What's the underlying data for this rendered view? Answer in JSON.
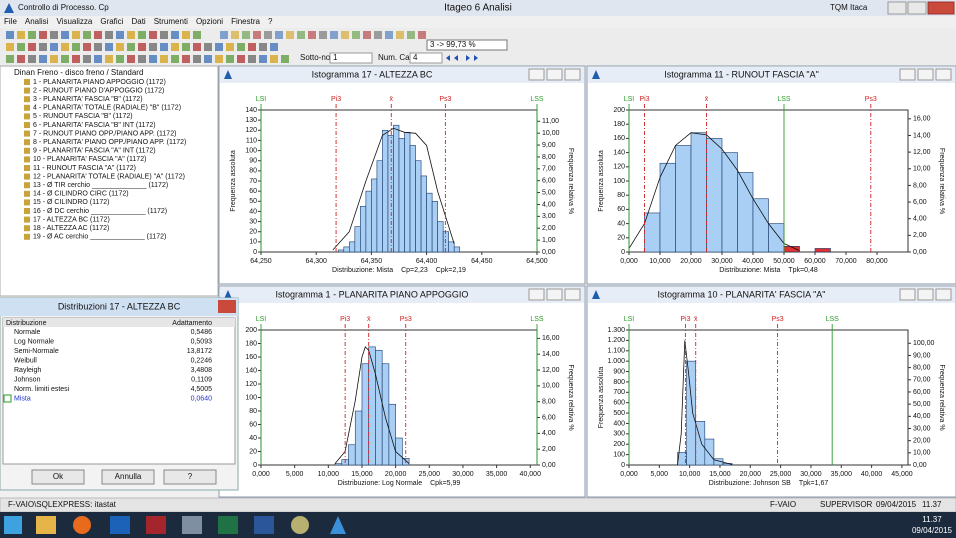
{
  "app": {
    "title": "Controllo di Processo. Cp",
    "center_title": "Itageo 6 Analisi",
    "right_title": "TQM Itaca"
  },
  "menu": [
    "File",
    "Analisi",
    "Visualizza",
    "Grafici",
    "Dati",
    "Strumenti",
    "Opzioni",
    "Finestra",
    "?"
  ],
  "toolbar": {
    "subgroup_label": "Sotto-no",
    "subgroup_value": "1",
    "categories_label": "Num. Cat.:",
    "categories_value": "4",
    "coverage": "3 -> 99,73 %"
  },
  "tree": {
    "root": "Dinan Freno - disco freno / Standard",
    "items": [
      "1 - PLANARITA PIANO APPOGGIO (1172)",
      "2 - RUNOUT PIANO D'APPOGGIO (1172)",
      "3 - PLANARITA' FASCIA \"B\" (1172)",
      "4 - PLANARITA' TOTALE (RADIALE) \"B\" (1172)",
      "5 - RUNOUT FASCIA \"B\" (1172)",
      "6 - PLANARITA' FASCIA \"B\" INT (1172)",
      "7 - RUNOUT PIANO OPP./PIANO APP. (1172)",
      "8 - PLANARITA' PIANO OPP./PIANO APP. (1172)",
      "9 - PLANARITA' FASCIA \"A\" INT (1172)",
      "10 - PLANARITA' FASCIA \"A\" (1172)",
      "11 - RUNOUT FASCIA \"A\" (1172)",
      "12 - PLANARITA' TOTALE (RADIALE) \"A\" (1172)",
      "13 - Ø TIR cerchio ______________ (1172)",
      "14 - Ø CILINDRO CIRC (1172)",
      "15 - Ø CILINDRO (1172)",
      "16 - Ø DC cerchio ______________ (1172)",
      "17 - ALTEZZA BC (1172)",
      "18 - ALTEZZA AC (1172)",
      "19 - Ø AC cerchio ______________ (1172)"
    ]
  },
  "dialog": {
    "title": "Distribuzioni 17 - ALTEZZA BC",
    "headers": [
      "Distribuzione",
      "Adattamento"
    ],
    "rows": [
      [
        "Normale",
        "0,5486"
      ],
      [
        "Log Normale",
        "0,5093"
      ],
      [
        "Semi-Normale",
        "13,8172"
      ],
      [
        "Weibull",
        "0,2246"
      ],
      [
        "Rayleigh",
        "3,4808"
      ],
      [
        "Johnson",
        "0,1109"
      ],
      [
        "Norm. limiti estesi",
        "4,5005"
      ],
      [
        "Mista",
        "0,0640"
      ]
    ],
    "buttons": [
      "Ok",
      "Annulla",
      "?"
    ]
  },
  "status": [
    "F-VAIO\\SQLEXPRESS: itastat",
    "F-VAIO",
    "SUPERVISOR",
    "09/04/2015",
    "11.37"
  ],
  "taskbar": {
    "time": "11.37",
    "date": "09/04/2015"
  },
  "chart_data": [
    {
      "type": "histogram",
      "title": "Istogramma 17 - ALTEZZA BC",
      "color": "#a9cff5",
      "bins": [
        64.32,
        64.325,
        64.33,
        64.335,
        64.34,
        64.345,
        64.35,
        64.355,
        64.36,
        64.365,
        64.37,
        64.375,
        64.38,
        64.385,
        64.39,
        64.395,
        64.4,
        64.405,
        64.41,
        64.415,
        64.42,
        64.425,
        64.43
      ],
      "values": [
        2,
        5,
        10,
        25,
        45,
        60,
        72,
        90,
        120,
        115,
        125,
        112,
        118,
        105,
        90,
        75,
        58,
        50,
        30,
        20,
        10,
        5
      ],
      "fit": {
        "x": [
          64.315,
          64.33,
          64.345,
          64.36,
          64.37,
          64.38,
          64.39,
          64.4,
          64.41,
          64.425
        ],
        "values": [
          2,
          20,
          70,
          115,
          122,
          118,
          117,
          105,
          60,
          8
        ]
      },
      "xlim": [
        64.25,
        64.5
      ],
      "xticks": [
        {
          "value": 64.25,
          "label": "64,250"
        },
        {
          "value": 64.3,
          "label": "64,300"
        },
        {
          "value": 64.35,
          "label": "64,350"
        },
        {
          "value": 64.4,
          "label": "64,400"
        },
        {
          "value": 64.45,
          "label": "64,450"
        },
        {
          "value": 64.5,
          "label": "64,500"
        }
      ],
      "ylim": [
        0,
        140
      ],
      "yticks": [
        0,
        10,
        20,
        30,
        40,
        50,
        60,
        70,
        80,
        90,
        100,
        110,
        120,
        130,
        140
      ],
      "y2lim": [
        0,
        11.95
      ],
      "y2ticks": [
        {
          "value": 0,
          "label": "0,00"
        },
        {
          "value": 1,
          "label": "1,00"
        },
        {
          "value": 2,
          "label": "2,00"
        },
        {
          "value": 3,
          "label": "3,00"
        },
        {
          "value": 4,
          "label": "4,00"
        },
        {
          "value": 5,
          "label": "5,00"
        },
        {
          "value": 6,
          "label": "6,00"
        },
        {
          "value": 7,
          "label": "7,00"
        },
        {
          "value": 8,
          "label": "8,00"
        },
        {
          "value": 9,
          "label": "9,00"
        },
        {
          "value": 10,
          "label": "10,00"
        },
        {
          "value": 11,
          "label": "11,00"
        }
      ],
      "ylabel": "Frequenza assoluta",
      "y2label": "Frequenza relativa %",
      "limits": [
        {
          "name": "LSI",
          "value": 64.25,
          "color": "#2a9d2a",
          "dash": false
        },
        {
          "name": "Pi3",
          "value": 64.318,
          "color": "#d02020",
          "dash": true
        },
        {
          "name": "x̄",
          "value": 64.368,
          "color": "#d02020",
          "dash": true
        },
        {
          "name": "Ps3",
          "value": 64.417,
          "color": "#d02020",
          "dash": true
        },
        {
          "name": "LSS",
          "value": 64.5,
          "color": "#2a9d2a",
          "dash": false
        }
      ],
      "footer": [
        "Distribuzione: Mista",
        "Cp=2,23",
        "Cpk=2,19"
      ]
    },
    {
      "type": "histogram",
      "title": "Istogramma 11 - RUNOUT FASCIA \"A\"",
      "color": "#a9cff5",
      "bins": [
        5,
        10,
        15,
        20,
        25,
        30,
        35,
        40,
        45,
        50,
        55,
        60,
        65
      ],
      "values": [
        55,
        125,
        150,
        168,
        160,
        140,
        112,
        75,
        40,
        8,
        0,
        5
      ],
      "bar_colors": [
        "#a9cff5",
        "#a9cff5",
        "#a9cff5",
        "#a9cff5",
        "#a9cff5",
        "#a9cff5",
        "#a9cff5",
        "#a9cff5",
        "#a9cff5",
        "#e03030",
        "#e03030",
        "#e03030"
      ],
      "fit": {
        "x": [
          0,
          5,
          10,
          15,
          20,
          25,
          30,
          35,
          40,
          45,
          50,
          55
        ],
        "values": [
          5,
          40,
          105,
          150,
          168,
          165,
          145,
          115,
          75,
          40,
          12,
          2
        ]
      },
      "xlim": [
        0,
        90
      ],
      "xticks": [
        {
          "value": 0,
          "label": "0,000"
        },
        {
          "value": 10,
          "label": "10,000"
        },
        {
          "value": 20,
          "label": "20,000"
        },
        {
          "value": 30,
          "label": "30,000"
        },
        {
          "value": 40,
          "label": "40,000"
        },
        {
          "value": 50,
          "label": "50,000"
        },
        {
          "value": 60,
          "label": "60,000"
        },
        {
          "value": 70,
          "label": "70,000"
        },
        {
          "value": 80,
          "label": "80,000"
        }
      ],
      "ylim": [
        0,
        200
      ],
      "yticks": [
        0,
        20,
        40,
        60,
        80,
        100,
        120,
        140,
        160,
        180,
        200
      ],
      "y2lim": [
        0,
        17.06
      ],
      "y2ticks": [
        {
          "value": 0,
          "label": "0,00"
        },
        {
          "value": 2,
          "label": "2,00"
        },
        {
          "value": 4,
          "label": "4,00"
        },
        {
          "value": 6,
          "label": "6,00"
        },
        {
          "value": 8,
          "label": "8,00"
        },
        {
          "value": 10,
          "label": "10,00"
        },
        {
          "value": 12,
          "label": "12,00"
        },
        {
          "value": 14,
          "label": "14,00"
        },
        {
          "value": 16,
          "label": "16,00"
        }
      ],
      "ylabel": "Frequenza assoluta",
      "y2label": "Frequenza relativa %",
      "limits": [
        {
          "name": "LSI",
          "value": 0,
          "color": "#2a9d2a",
          "dash": false
        },
        {
          "name": "Pi3",
          "value": 5,
          "color": "#d02020",
          "dash": true
        },
        {
          "name": "x̄",
          "value": 25,
          "color": "#d02020",
          "dash": true
        },
        {
          "name": "LSS",
          "value": 50,
          "color": "#2a9d2a",
          "dash": false
        },
        {
          "name": "Ps3",
          "value": 78,
          "color": "#d02020",
          "dash": true
        }
      ],
      "footer": [
        "Distribuzione: Mista",
        "Tpk=0,48"
      ]
    },
    {
      "type": "histogram",
      "title": "Istogramma 1 - PLANARITA PIANO APPOGGIO",
      "color": "#a9cff5",
      "bins": [
        11,
        12,
        13,
        14,
        15,
        16,
        17,
        18,
        19,
        20,
        21,
        22
      ],
      "values": [
        2,
        8,
        30,
        80,
        150,
        175,
        170,
        150,
        90,
        40,
        10
      ],
      "fit": {
        "x": [
          11,
          12.5,
          14,
          15,
          15.5,
          16,
          17,
          18.5,
          20,
          22
        ],
        "values": [
          2,
          20,
          95,
          160,
          175,
          170,
          135,
          70,
          20,
          2
        ]
      },
      "xlim": [
        0,
        41
      ],
      "xticks": [
        {
          "value": 0,
          "label": "0,000"
        },
        {
          "value": 5,
          "label": "5,000"
        },
        {
          "value": 10,
          "label": "10,000"
        },
        {
          "value": 15,
          "label": "15,000"
        },
        {
          "value": 20,
          "label": "20,000"
        },
        {
          "value": 25,
          "label": "25,000"
        },
        {
          "value": 30,
          "label": "30,000"
        },
        {
          "value": 35,
          "label": "35,000"
        },
        {
          "value": 40,
          "label": "40,000"
        }
      ],
      "ylim": [
        0,
        200
      ],
      "yticks": [
        0,
        20,
        40,
        60,
        80,
        100,
        120,
        140,
        160,
        180,
        200
      ],
      "y2lim": [
        0,
        17.06
      ],
      "y2ticks": [
        {
          "value": 0,
          "label": "0,00"
        },
        {
          "value": 2,
          "label": "2,00"
        },
        {
          "value": 4,
          "label": "4,00"
        },
        {
          "value": 6,
          "label": "6,00"
        },
        {
          "value": 8,
          "label": "8,00"
        },
        {
          "value": 10,
          "label": "10,00"
        },
        {
          "value": 12,
          "label": "12,00"
        },
        {
          "value": 14,
          "label": "14,00"
        },
        {
          "value": 16,
          "label": "16,00"
        }
      ],
      "ylabel": "Frequenza assoluta",
      "y2label": "Frequenza relativa %",
      "limits": [
        {
          "name": "LSI",
          "value": 0,
          "color": "#2a9d2a",
          "dash": false
        },
        {
          "name": "Pi3",
          "value": 12.5,
          "color": "#d02020",
          "dash": true
        },
        {
          "name": "x̄",
          "value": 16,
          "color": "#d02020",
          "dash": true
        },
        {
          "name": "Ps3",
          "value": 21.5,
          "color": "#d02020",
          "dash": true
        },
        {
          "name": "LSS",
          "value": 41,
          "color": "#2a9d2a",
          "dash": false
        }
      ],
      "footer": [
        "Distribuzione: Log Normale",
        "Cpk=5,99"
      ]
    },
    {
      "type": "histogram",
      "title": "Istogramma 10 - PLANARITA' FASCIA \"A\"",
      "color": "#a9cff5",
      "bins": [
        8,
        9.5,
        11,
        12.5,
        14,
        15.5,
        17
      ],
      "values": [
        120,
        1000,
        420,
        250,
        60,
        15
      ],
      "fit": {
        "x": [
          8,
          8.6,
          9.2,
          9.8,
          10.5,
          12,
          14,
          17
        ],
        "values": [
          0,
          300,
          1200,
          900,
          500,
          200,
          50,
          5
        ]
      },
      "xlim": [
        0,
        46
      ],
      "xticks": [
        {
          "value": 0,
          "label": "0,000"
        },
        {
          "value": 5,
          "label": "5,000"
        },
        {
          "value": 10,
          "label": "10,000"
        },
        {
          "value": 15,
          "label": "15,000"
        },
        {
          "value": 20,
          "label": "20,000"
        },
        {
          "value": 25,
          "label": "25,000"
        },
        {
          "value": 30,
          "label": "30,000"
        },
        {
          "value": 35,
          "label": "35,000"
        },
        {
          "value": 40,
          "label": "40,000"
        },
        {
          "value": 45,
          "label": "45,000"
        }
      ],
      "ylim": [
        0,
        1300
      ],
      "yticks": [
        0,
        100,
        200,
        300,
        400,
        500,
        600,
        700,
        800,
        900,
        {
          "value": 1000,
          "label": "1.000"
        },
        {
          "value": 1100,
          "label": "1.100"
        },
        {
          "value": 1200,
          "label": "1.200"
        },
        {
          "value": 1300,
          "label": "1.300"
        }
      ],
      "y2lim": [
        0,
        110.9
      ],
      "y2ticks": [
        {
          "value": 0,
          "label": "0,00"
        },
        {
          "value": 10,
          "label": "10,00"
        },
        {
          "value": 20,
          "label": "20,00"
        },
        {
          "value": 30,
          "label": "30,00"
        },
        {
          "value": 40,
          "label": "40,00"
        },
        {
          "value": 50,
          "label": "50,00"
        },
        {
          "value": 60,
          "label": "60,00"
        },
        {
          "value": 70,
          "label": "70,00"
        },
        {
          "value": 80,
          "label": "80,00"
        },
        {
          "value": 90,
          "label": "90,00"
        },
        {
          "value": 100,
          "label": "100,00"
        }
      ],
      "ylabel": "Frequenza assoluta",
      "y2label": "Frequenza relativa %",
      "limits": [
        {
          "name": "LSI",
          "value": 0,
          "color": "#2a9d2a",
          "dash": false
        },
        {
          "name": "Pi3",
          "value": 9.3,
          "color": "#d02020",
          "dash": true
        },
        {
          "name": "x̄",
          "value": 11,
          "color": "#d02020",
          "dash": true
        },
        {
          "name": "Ps3",
          "value": 24.5,
          "color": "#d02020",
          "dash": true
        },
        {
          "name": "LSS",
          "value": 33.5,
          "color": "#2a9d2a",
          "dash": false
        }
      ],
      "footer": [
        "Distribuzione: Johnson SB",
        "Tpk=1,67"
      ]
    }
  ]
}
